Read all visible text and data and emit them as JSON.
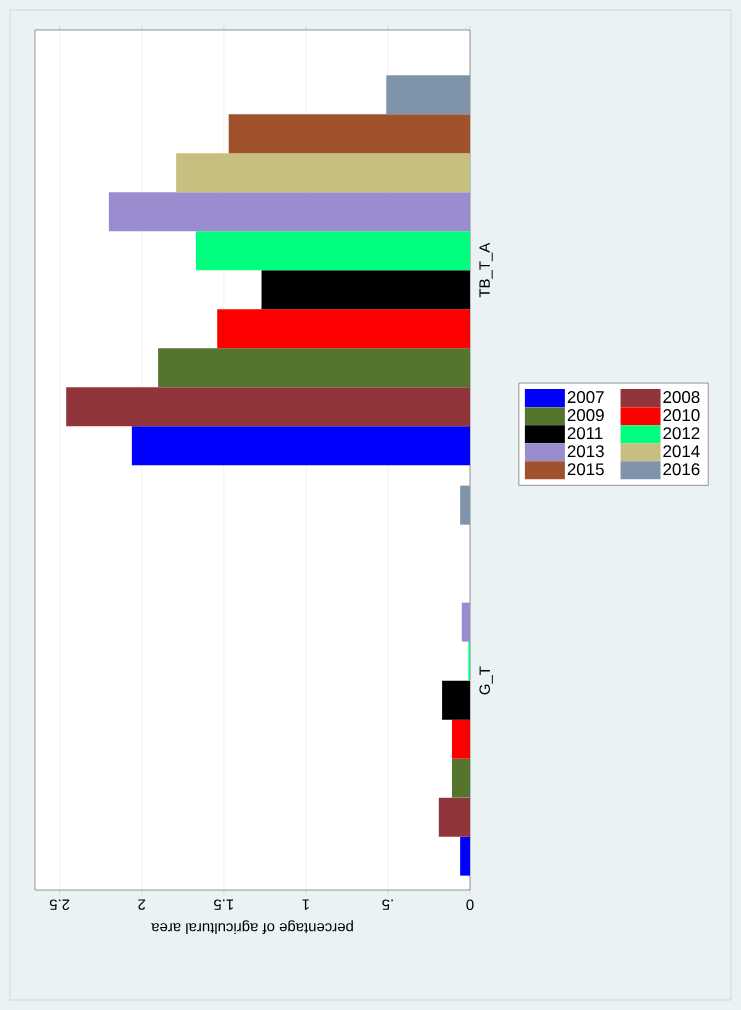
{
  "chart_data": {
    "type": "bar",
    "orientation": "horizontal",
    "ylabel": null,
    "xlabel": "percentage of agricultural area",
    "categories": [
      "TB_T_A",
      "G_T"
    ],
    "series": [
      {
        "name": "2007",
        "color": "#0000ff",
        "values": [
          2.06,
          0.06
        ]
      },
      {
        "name": "2008",
        "color": "#90353b",
        "values": [
          2.46,
          0.19
        ]
      },
      {
        "name": "2009",
        "color": "#55752f",
        "values": [
          1.9,
          0.11
        ]
      },
      {
        "name": "2010",
        "color": "#ff0000",
        "values": [
          1.54,
          0.11
        ]
      },
      {
        "name": "2011",
        "color": "#000000",
        "values": [
          1.27,
          0.17
        ]
      },
      {
        "name": "2012",
        "color": "#00ff7f",
        "values": [
          1.67,
          0.01
        ]
      },
      {
        "name": "2013",
        "color": "#9a8ccf",
        "values": [
          2.2,
          0.05
        ]
      },
      {
        "name": "2014",
        "color": "#c6bf7f",
        "values": [
          1.79,
          0
        ]
      },
      {
        "name": "2015",
        "color": "#a0522d",
        "values": [
          1.47,
          0
        ]
      },
      {
        "name": "2016",
        "color": "#7f93aa",
        "values": [
          0.51,
          0.06
        ]
      }
    ],
    "xlim": [
      2.65,
      0
    ],
    "xticks": [
      0,
      {
        "value": 0.5,
        "label": ".5"
      },
      1,
      1.5,
      2,
      2.5
    ],
    "grid": "x",
    "legend": "right"
  }
}
